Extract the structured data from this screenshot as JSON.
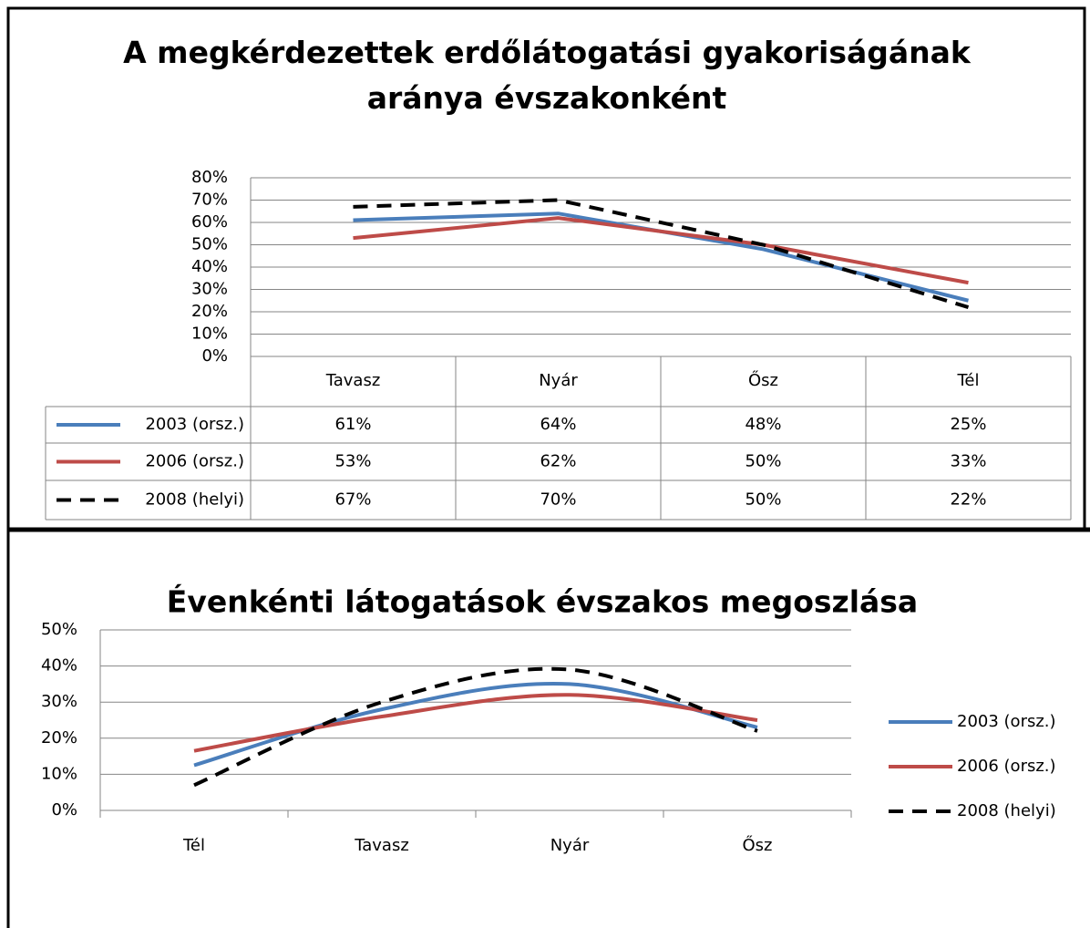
{
  "chart_data": [
    {
      "type": "line",
      "title": "A megkérdezettek erdőlátogatási gyakoriságának aránya évszakonként",
      "categories": [
        "Tavasz",
        "Nyár",
        "Ősz",
        "Tél"
      ],
      "series": [
        {
          "name": "2003 (orsz.)",
          "color": "#4a7ebb",
          "dashed": false,
          "values": [
            61,
            64,
            48,
            25
          ],
          "value_labels": [
            "61%",
            "64%",
            "48%",
            "25%"
          ]
        },
        {
          "name": "2006 (orsz.)",
          "color": "#be4b48",
          "dashed": false,
          "values": [
            53,
            62,
            50,
            33
          ],
          "value_labels": [
            "53%",
            "62%",
            "50%",
            "33%"
          ]
        },
        {
          "name": "2008 (helyi)",
          "color": "#000000",
          "dashed": true,
          "values": [
            67,
            70,
            50,
            22
          ],
          "value_labels": [
            "67%",
            "70%",
            "50%",
            "22%"
          ]
        }
      ],
      "ylim": [
        0,
        80
      ],
      "yticks": [
        {
          "value": 0,
          "label": "0%"
        },
        {
          "value": 10,
          "label": "10%"
        },
        {
          "value": 20,
          "label": "20%"
        },
        {
          "value": 30,
          "label": "30%"
        },
        {
          "value": 40,
          "label": "40%"
        },
        {
          "value": 50,
          "label": "50%"
        },
        {
          "value": 60,
          "label": "60%"
        },
        {
          "value": 70,
          "label": "70%"
        },
        {
          "value": 80,
          "label": "80%"
        }
      ],
      "grid": true,
      "legend": "table",
      "smooth": false
    },
    {
      "type": "line",
      "title": "Évenkénti látogatások évszakos megoszlása",
      "categories": [
        "Tél",
        "Tavasz",
        "Nyár",
        "Ősz"
      ],
      "series": [
        {
          "name": "2003 (orsz.)",
          "color": "#4a7ebb",
          "dashed": false,
          "values": [
            12.5,
            28,
            35,
            23
          ]
        },
        {
          "name": "2006 (orsz.)",
          "color": "#be4b48",
          "dashed": false,
          "values": [
            16.5,
            26,
            32,
            25
          ]
        },
        {
          "name": "2008 (helyi)",
          "color": "#000000",
          "dashed": true,
          "values": [
            7,
            30,
            39,
            22
          ]
        }
      ],
      "ylim": [
        0,
        50
      ],
      "yticks": [
        {
          "value": 0,
          "label": "0%"
        },
        {
          "value": 10,
          "label": "10%"
        },
        {
          "value": 20,
          "label": "20%"
        },
        {
          "value": 30,
          "label": "30%"
        },
        {
          "value": 40,
          "label": "40%"
        },
        {
          "value": 50,
          "label": "50%"
        }
      ],
      "grid": true,
      "legend": "right",
      "smooth": true
    }
  ]
}
